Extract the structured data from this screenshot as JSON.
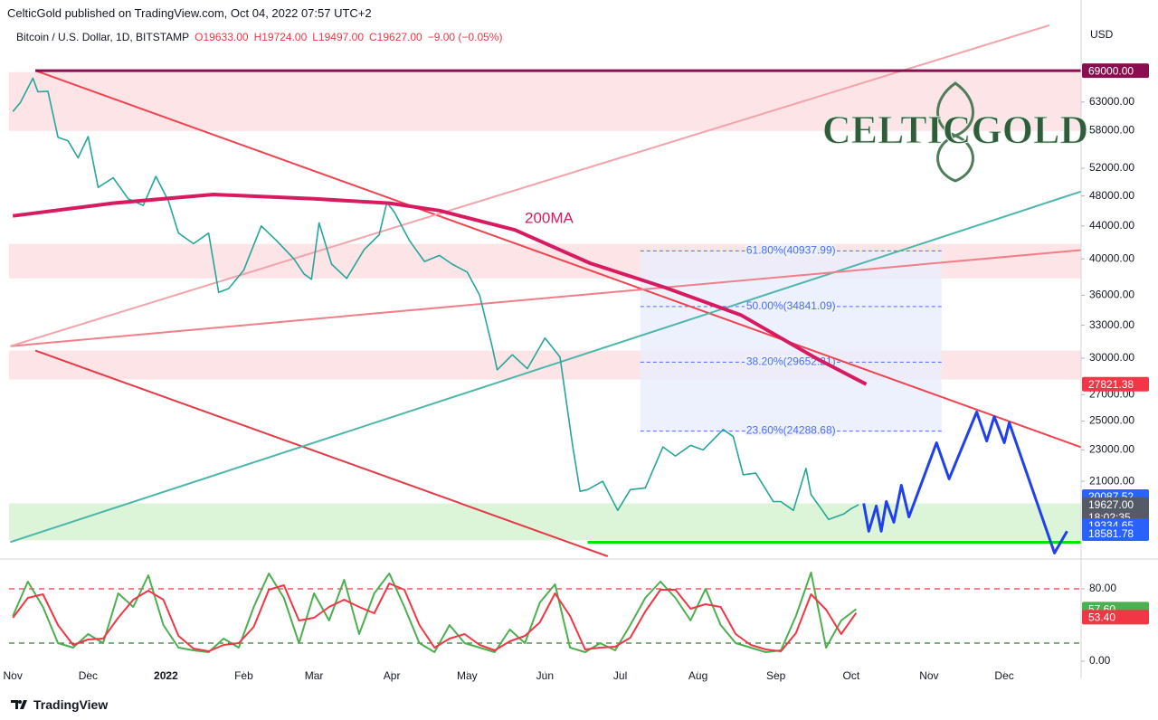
{
  "header": {
    "publisher": "CelticGold published on TradingView.com, Oct 04, 2022 07:57 UTC+2",
    "footer": "TradingView",
    "logo": "CELTICGOLD"
  },
  "chart_data": [
    {
      "type": "line",
      "title": "Bitcoin / U.S. Dollar, 1D, BITSTAMP",
      "ohlc": [
        "O19633.00",
        "H19724.00",
        "L19497.00",
        "C19627.00",
        "−9.00 (−0.05%)"
      ],
      "axis_unit": "USD",
      "log_scale": true,
      "xlim": [
        -1.5,
        425.6
      ],
      "ylim": [
        16900,
        79300
      ],
      "yticks": [
        {
          "value": 63000,
          "label": "63000.00"
        },
        {
          "value": 58000,
          "label": "58000.00"
        },
        {
          "value": 52000,
          "label": "52000.00"
        },
        {
          "value": 48000,
          "label": "48000.00"
        },
        {
          "value": 44000,
          "label": "44000.00"
        },
        {
          "value": 40000,
          "label": "40000.00"
        },
        {
          "value": 36000,
          "label": "36000.00"
        },
        {
          "value": 33000,
          "label": "33000.00"
        },
        {
          "value": 30000,
          "label": "30000.00"
        },
        {
          "value": 27000,
          "label": "27000.00"
        },
        {
          "value": 25000,
          "label": "25000.00"
        },
        {
          "value": 23000,
          "label": "23000.00"
        },
        {
          "value": 21000,
          "label": "21000.00"
        }
      ],
      "zones": [
        {
          "from": 57940,
          "to": 68700,
          "color": "#fde4e6"
        },
        {
          "from": 37800,
          "to": 41770,
          "color": "#fde4e6"
        },
        {
          "from": 28200,
          "to": 30670,
          "color": "#fde4e6"
        },
        {
          "from": 17700,
          "to": 19700,
          "color": "#dcf5d8"
        }
      ],
      "fib": {
        "x": [
          250,
          370
        ],
        "color": "#4a6cf7",
        "levels": [
          {
            "value": 40937.99,
            "label": "61.80%(40937.99)"
          },
          {
            "value": 34841.09,
            "label": "50.00%(34841.09)"
          },
          {
            "value": 29652.21,
            "label": "38.20%(29652.21)"
          },
          {
            "value": 24288.68,
            "label": "23.60%(24288.68)"
          }
        ]
      },
      "trendlines": [
        {
          "x": [
            9,
            425.6
          ],
          "values": [
            69000,
            23180
          ],
          "color": "#f0434f"
        },
        {
          "x": [
            9,
            237
          ],
          "values": [
            30670,
            16900
          ],
          "color": "#e53946"
        },
        {
          "x": [
            -1,
            425.6
          ],
          "values": [
            17610,
            48620
          ],
          "color": "#4db6ac"
        },
        {
          "x": [
            -1,
            425.6
          ],
          "values": [
            31060,
            41030
          ],
          "color": "#ef7f88"
        },
        {
          "x": [
            -1,
            413
          ],
          "values": [
            31060,
            78700
          ],
          "color": "#f4a3aa"
        }
      ],
      "levels": [
        {
          "value": 69000,
          "x": [
            9,
            425.6
          ],
          "color": "#880e4f"
        },
        {
          "value": 17600,
          "x": [
            229,
            425.6
          ],
          "color": "#00e600"
        }
      ],
      "series": [
        {
          "color": "#26a69a",
          "x": [
            0,
            3,
            8,
            10,
            14,
            18,
            22,
            26,
            30,
            34,
            40,
            46,
            52,
            57,
            62,
            66,
            72,
            78,
            82,
            86,
            92,
            99,
            105,
            112,
            116,
            119,
            122,
            127,
            133,
            140,
            146,
            149,
            152,
            158,
            164,
            170,
            175,
            181,
            186,
            191,
            193,
            199,
            205,
            212,
            218,
            223,
            226,
            229,
            235,
            241,
            246,
            252,
            259,
            264,
            270,
            275,
            283,
            287,
            291,
            296,
            303,
            306,
            311,
            316,
            318,
            322,
            325,
            331,
            334,
            337
          ],
          "values": [
            61300,
            62900,
            67500,
            64900,
            65000,
            56900,
            56300,
            53600,
            57000,
            49200,
            50600,
            47600,
            46700,
            50800,
            47300,
            43100,
            41800,
            43100,
            36300,
            36700,
            38700,
            44000,
            42200,
            40000,
            38300,
            37700,
            44400,
            39400,
            37800,
            41100,
            42900,
            47100,
            45800,
            42200,
            39700,
            40400,
            39400,
            38500,
            36000,
            31000,
            29000,
            30300,
            29100,
            31800,
            30100,
            23300,
            20400,
            20500,
            21000,
            19300,
            20500,
            20600,
            23200,
            22600,
            23300,
            23000,
            24400,
            23900,
            21400,
            21500,
            19800,
            19800,
            19300,
            21800,
            20200,
            19400,
            18800,
            19100,
            19400,
            19627
          ]
        },
        {
          "name": "200MA",
          "color": "#d81b60",
          "x": [
            0,
            40,
            80,
            120,
            150,
            170,
            200,
            230,
            260,
            290,
            320,
            340
          ],
          "values": [
            45300,
            47000,
            48200,
            47600,
            47000,
            46000,
            43500,
            39500,
            36800,
            34000,
            30000,
            27821.38
          ]
        },
        {
          "color": "#1e40ef",
          "x": [
            339,
            341,
            344,
            346,
            348,
            351,
            354,
            357,
            368,
            373,
            384,
            388,
            391,
            395,
            397,
            415,
            420
          ],
          "values": [
            19700,
            18170,
            19550,
            18170,
            19810,
            18650,
            20760,
            18940,
            23480,
            21150,
            25670,
            23600,
            25330,
            23480,
            24880,
            17060,
            18170
          ]
        }
      ],
      "price_labels": [
        {
          "value": 69000,
          "label": "69000.00",
          "color": "#880e4f"
        },
        {
          "value": 27821.38,
          "label": "27821.38",
          "color": "#f23645"
        },
        {
          "value": 20087.52,
          "label": "20087.52",
          "color": "#2962ff"
        },
        {
          "value": 19627,
          "label": "19627.00",
          "color": "#555b66",
          "sub": "18:02:35"
        },
        {
          "value": 19334.65,
          "label": "19334.65",
          "color": "#2962ff"
        },
        {
          "value": 18581.78,
          "label": "18581.78",
          "color": "#2962ff"
        }
      ]
    },
    {
      "type": "line",
      "xlim": [
        -1.5,
        425.6
      ],
      "ylim": [
        -11,
        109
      ],
      "xticks": [
        {
          "value": 0,
          "label": "Nov"
        },
        {
          "value": 30,
          "label": "Dec"
        },
        {
          "value": 61,
          "label": "2022"
        },
        {
          "value": 92,
          "label": "Feb"
        },
        {
          "value": 120,
          "label": "Mar"
        },
        {
          "value": 151,
          "label": "Apr"
        },
        {
          "value": 181,
          "label": "May"
        },
        {
          "value": 212,
          "label": "Jun"
        },
        {
          "value": 242,
          "label": "Jul"
        },
        {
          "value": 273,
          "label": "Aug"
        },
        {
          "value": 304,
          "label": "Sep"
        },
        {
          "value": 334,
          "label": "Oct"
        },
        {
          "value": 365,
          "label": "Nov"
        },
        {
          "value": 395,
          "label": "Dec"
        }
      ],
      "yticks": [
        {
          "value": 80,
          "label": "80.00"
        },
        {
          "value": 0,
          "label": "0.00"
        }
      ],
      "levels": [
        {
          "value": 80,
          "color": "#f23645"
        },
        {
          "value": 20,
          "color": "#2e7d32"
        }
      ],
      "series": [
        {
          "color": "#4caf50",
          "x": [
            0,
            6,
            12,
            18,
            24,
            30,
            36,
            42,
            48,
            54,
            60,
            66,
            72,
            78,
            84,
            90,
            96,
            102,
            108,
            114,
            120,
            126,
            132,
            138,
            144,
            150,
            156,
            162,
            168,
            174,
            180,
            186,
            192,
            198,
            204,
            210,
            216,
            222,
            228,
            234,
            240,
            246,
            252,
            258,
            264,
            270,
            276,
            282,
            288,
            294,
            300,
            306,
            312,
            318,
            324,
            330,
            336
          ],
          "values": [
            50,
            88,
            60,
            20,
            15,
            30,
            20,
            75,
            60,
            95,
            40,
            15,
            12,
            10,
            25,
            15,
            60,
            97,
            70,
            20,
            75,
            45,
            90,
            30,
            75,
            97,
            60,
            20,
            10,
            40,
            20,
            15,
            10,
            35,
            20,
            65,
            85,
            15,
            10,
            20,
            12,
            40,
            70,
            88,
            70,
            45,
            80,
            40,
            20,
            15,
            10,
            12,
            50,
            98,
            15,
            45,
            57.6
          ]
        },
        {
          "color": "#f23645",
          "x": [
            0,
            6,
            12,
            18,
            24,
            30,
            36,
            42,
            48,
            54,
            60,
            66,
            72,
            78,
            84,
            90,
            96,
            102,
            108,
            114,
            120,
            126,
            132,
            138,
            144,
            150,
            156,
            162,
            168,
            174,
            180,
            186,
            192,
            198,
            204,
            210,
            216,
            222,
            228,
            234,
            240,
            246,
            252,
            258,
            264,
            270,
            276,
            282,
            288,
            294,
            300,
            306,
            312,
            318,
            324,
            330,
            336
          ],
          "values": [
            48,
            70,
            74,
            40,
            18,
            24,
            25,
            48,
            68,
            78,
            68,
            28,
            14,
            11,
            18,
            20,
            38,
            79,
            84,
            45,
            48,
            60,
            68,
            60,
            53,
            86,
            79,
            40,
            15,
            25,
            30,
            18,
            12,
            22,
            28,
            43,
            75,
            50,
            13,
            15,
            16,
            26,
            55,
            79,
            79,
            58,
            63,
            60,
            30,
            18,
            13,
            11,
            31,
            74,
            57,
            30,
            53.4
          ]
        }
      ],
      "price_labels": [
        {
          "value": 57.6,
          "label": "57.60",
          "color": "#4caf50"
        },
        {
          "value": 53.4,
          "label": "53.40",
          "color": "#f23645"
        }
      ]
    }
  ]
}
